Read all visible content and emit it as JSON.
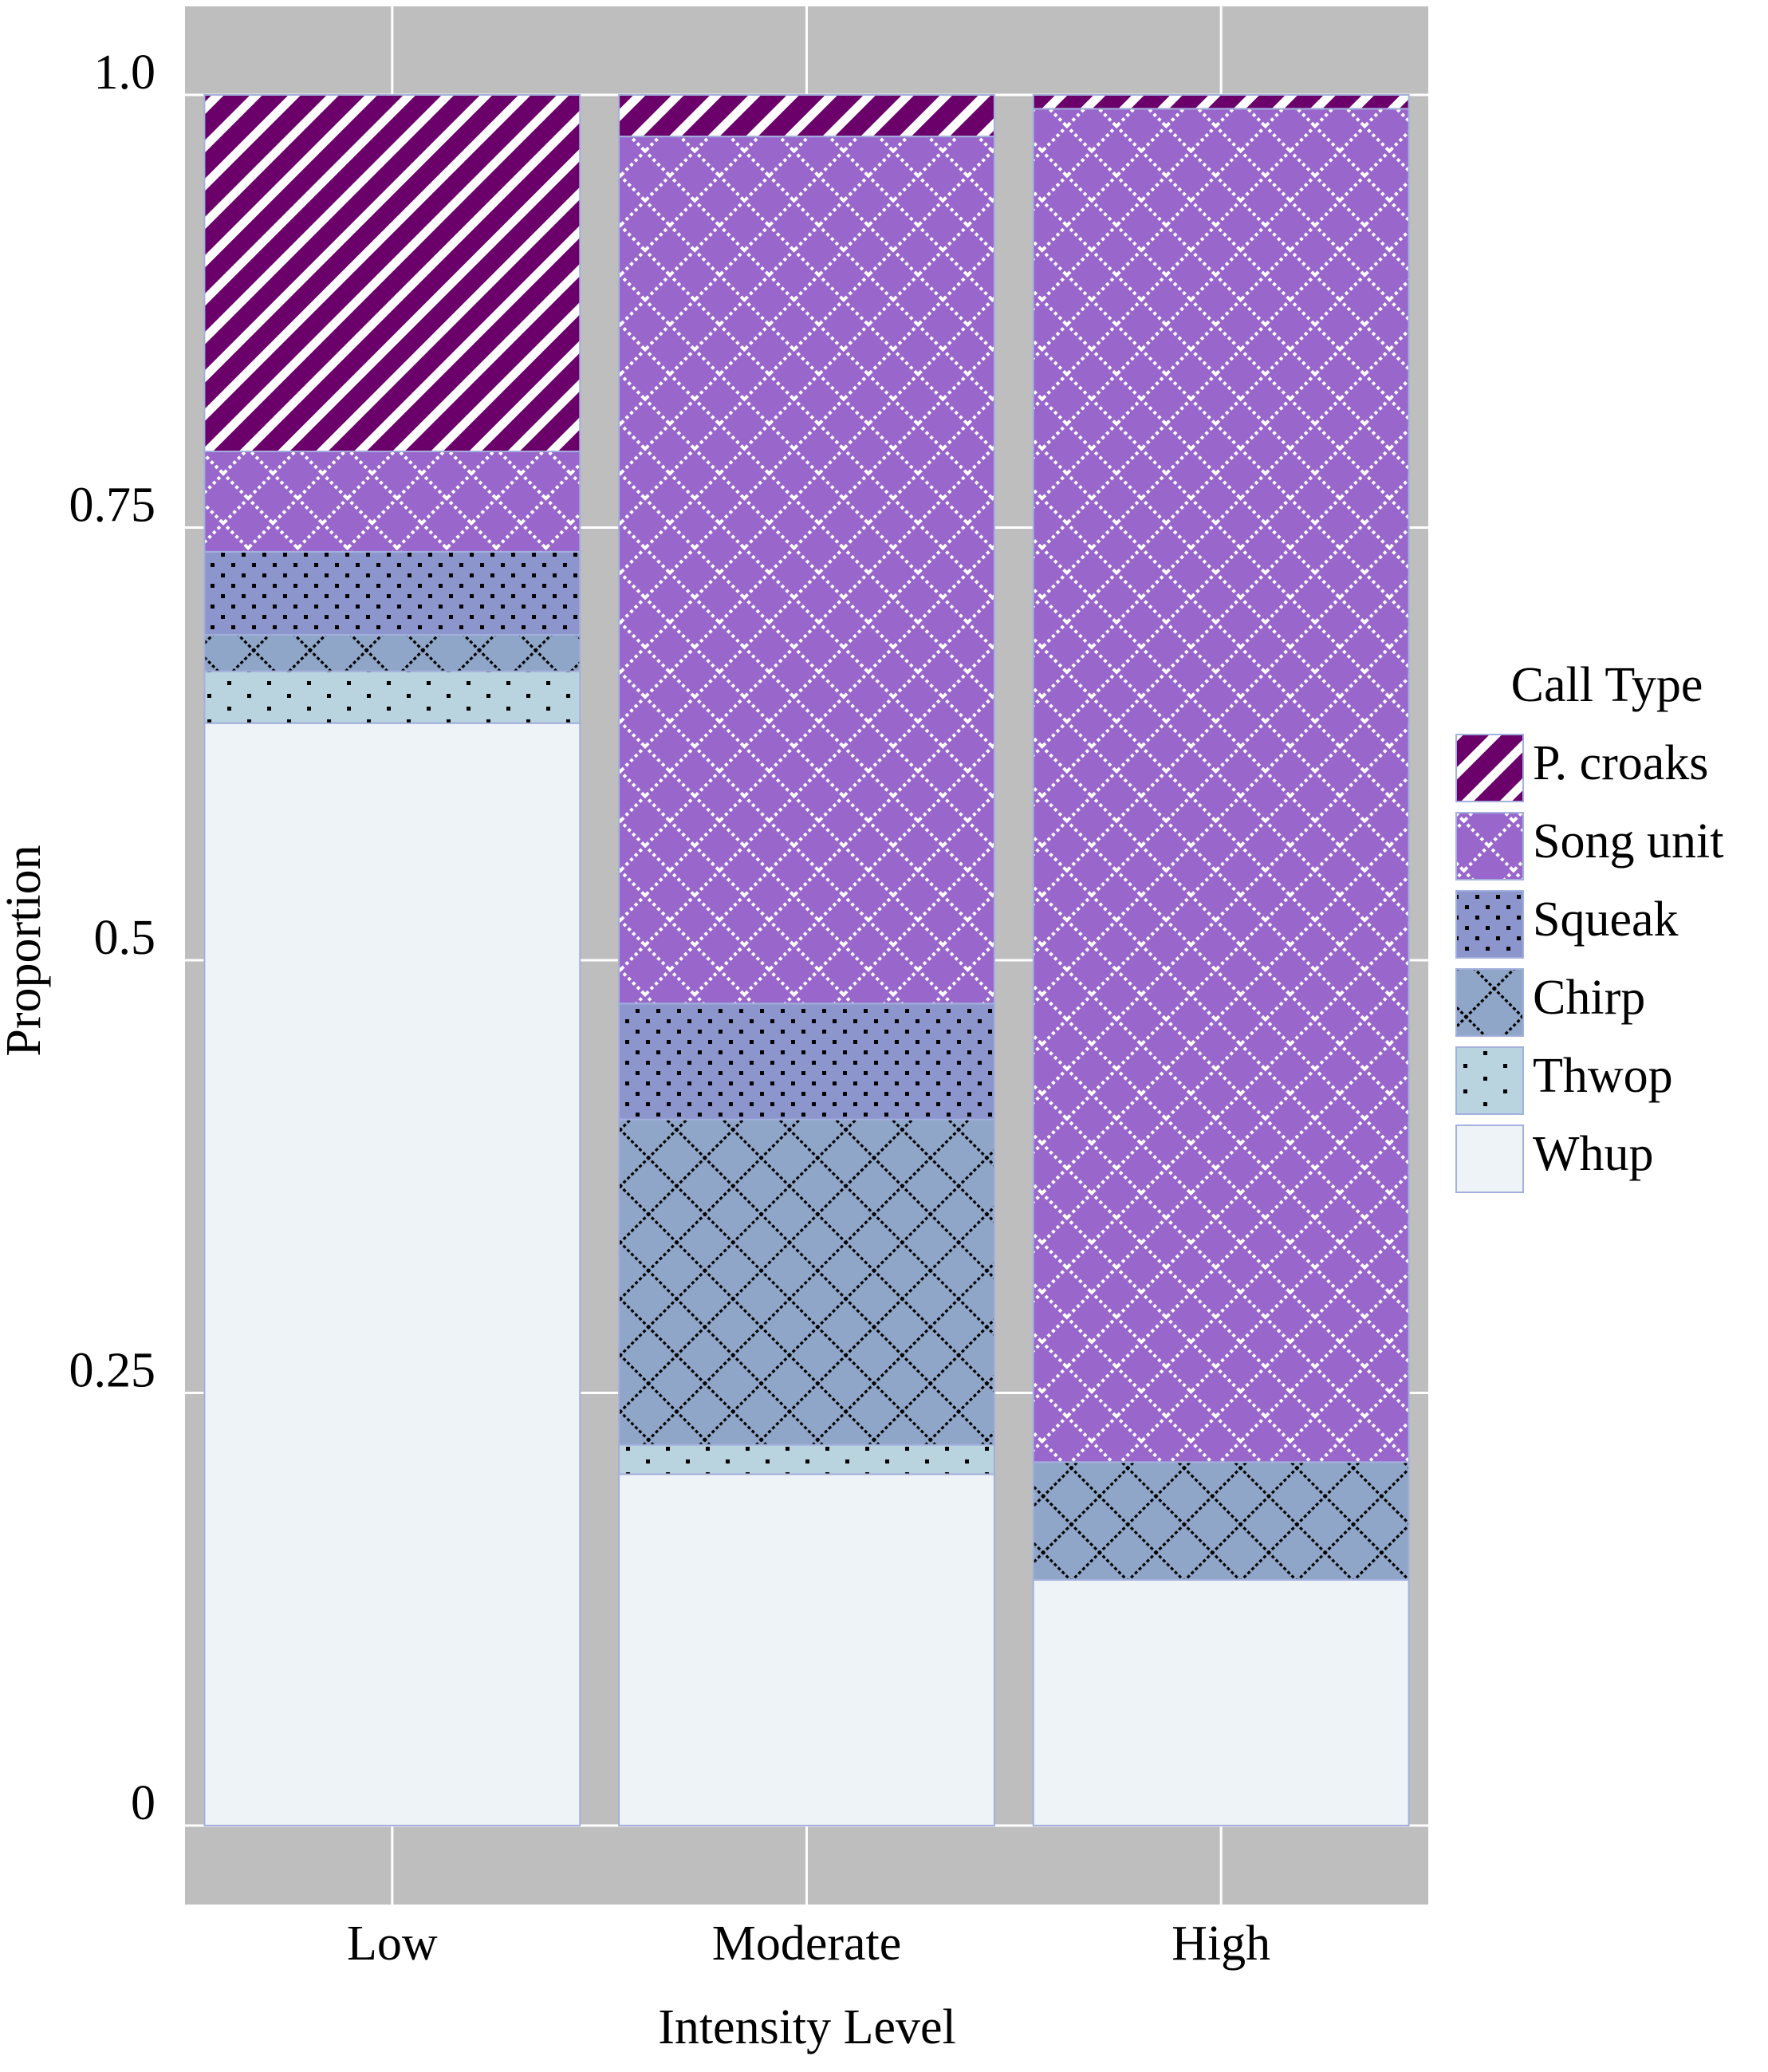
{
  "chart_data": {
    "type": "stacked_bar",
    "x_label": "Intensity Level",
    "y_label": "Proportion",
    "legend_title": "Call Type",
    "categories": [
      "Low",
      "Moderate",
      "High"
    ],
    "series": [
      {
        "name": "Whup",
        "color": "#eef3f7",
        "values": [
          0.637,
          0.203,
          0.142
        ]
      },
      {
        "name": "Thwop",
        "color": "#b9d3df",
        "values": [
          0.03,
          0.017,
          0
        ]
      },
      {
        "name": "Chirp",
        "color": "#8fa6c8",
        "values": [
          0.021,
          0.188,
          0.068
        ]
      },
      {
        "name": "Squeak",
        "color": "#8d96cc",
        "values": [
          0.048,
          0.067,
          0
        ]
      },
      {
        "name": "Song unit",
        "color": "#9966cc",
        "values": [
          0.058,
          0.501,
          0.782
        ]
      },
      {
        "name": "P. croaks",
        "color": "#6b006b",
        "values": [
          0.206,
          0.024,
          0.008
        ]
      }
    ],
    "ylim": [
      0,
      1
    ],
    "yticks": [
      0,
      0.25,
      0.5,
      0.75,
      {
        "value": 1,
        "label": "1.0"
      }
    ],
    "grid": true,
    "legend": "right"
  }
}
